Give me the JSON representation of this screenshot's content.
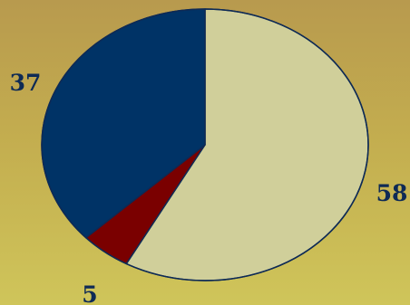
{
  "chart_data": {
    "type": "pie",
    "title": "",
    "slices": [
      {
        "value": 58,
        "label": "58",
        "color": "#d0cf9a"
      },
      {
        "value": 5,
        "label": "5",
        "color": "#7a0000"
      },
      {
        "value": 37,
        "label": "37",
        "color": "#003366"
      }
    ],
    "legend": "none",
    "start_angle": "12 o'clock",
    "direction": "clockwise",
    "style": "3d-tilted-ellipse"
  },
  "colors": {
    "background_top": "#b89a4e",
    "background_bottom": "#cfc55a",
    "outline": "#0e2a55",
    "label_text": "#0e2a55"
  }
}
